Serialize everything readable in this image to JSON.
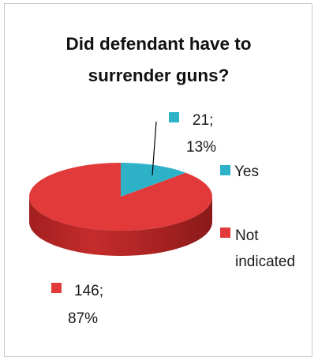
{
  "chart_data": {
    "type": "pie",
    "title_lines": [
      "Did defendant have to",
      "surrender guns?"
    ],
    "slices": [
      {
        "label": "Yes",
        "value": 21,
        "percent": "13%",
        "data_label_line1": "21;",
        "data_label_line2": "13%",
        "color": "#2eb2c8",
        "side_color": "#1e8698"
      },
      {
        "label": "Not indicated",
        "label_line1": "Not",
        "label_line2": "indicated",
        "value": 146,
        "percent": "87%",
        "data_label_line1": "146;",
        "data_label_line2": "87%",
        "color": "#e23a3a",
        "side_color": "#b02525"
      }
    ],
    "legend_position": "right",
    "three_d": true
  }
}
